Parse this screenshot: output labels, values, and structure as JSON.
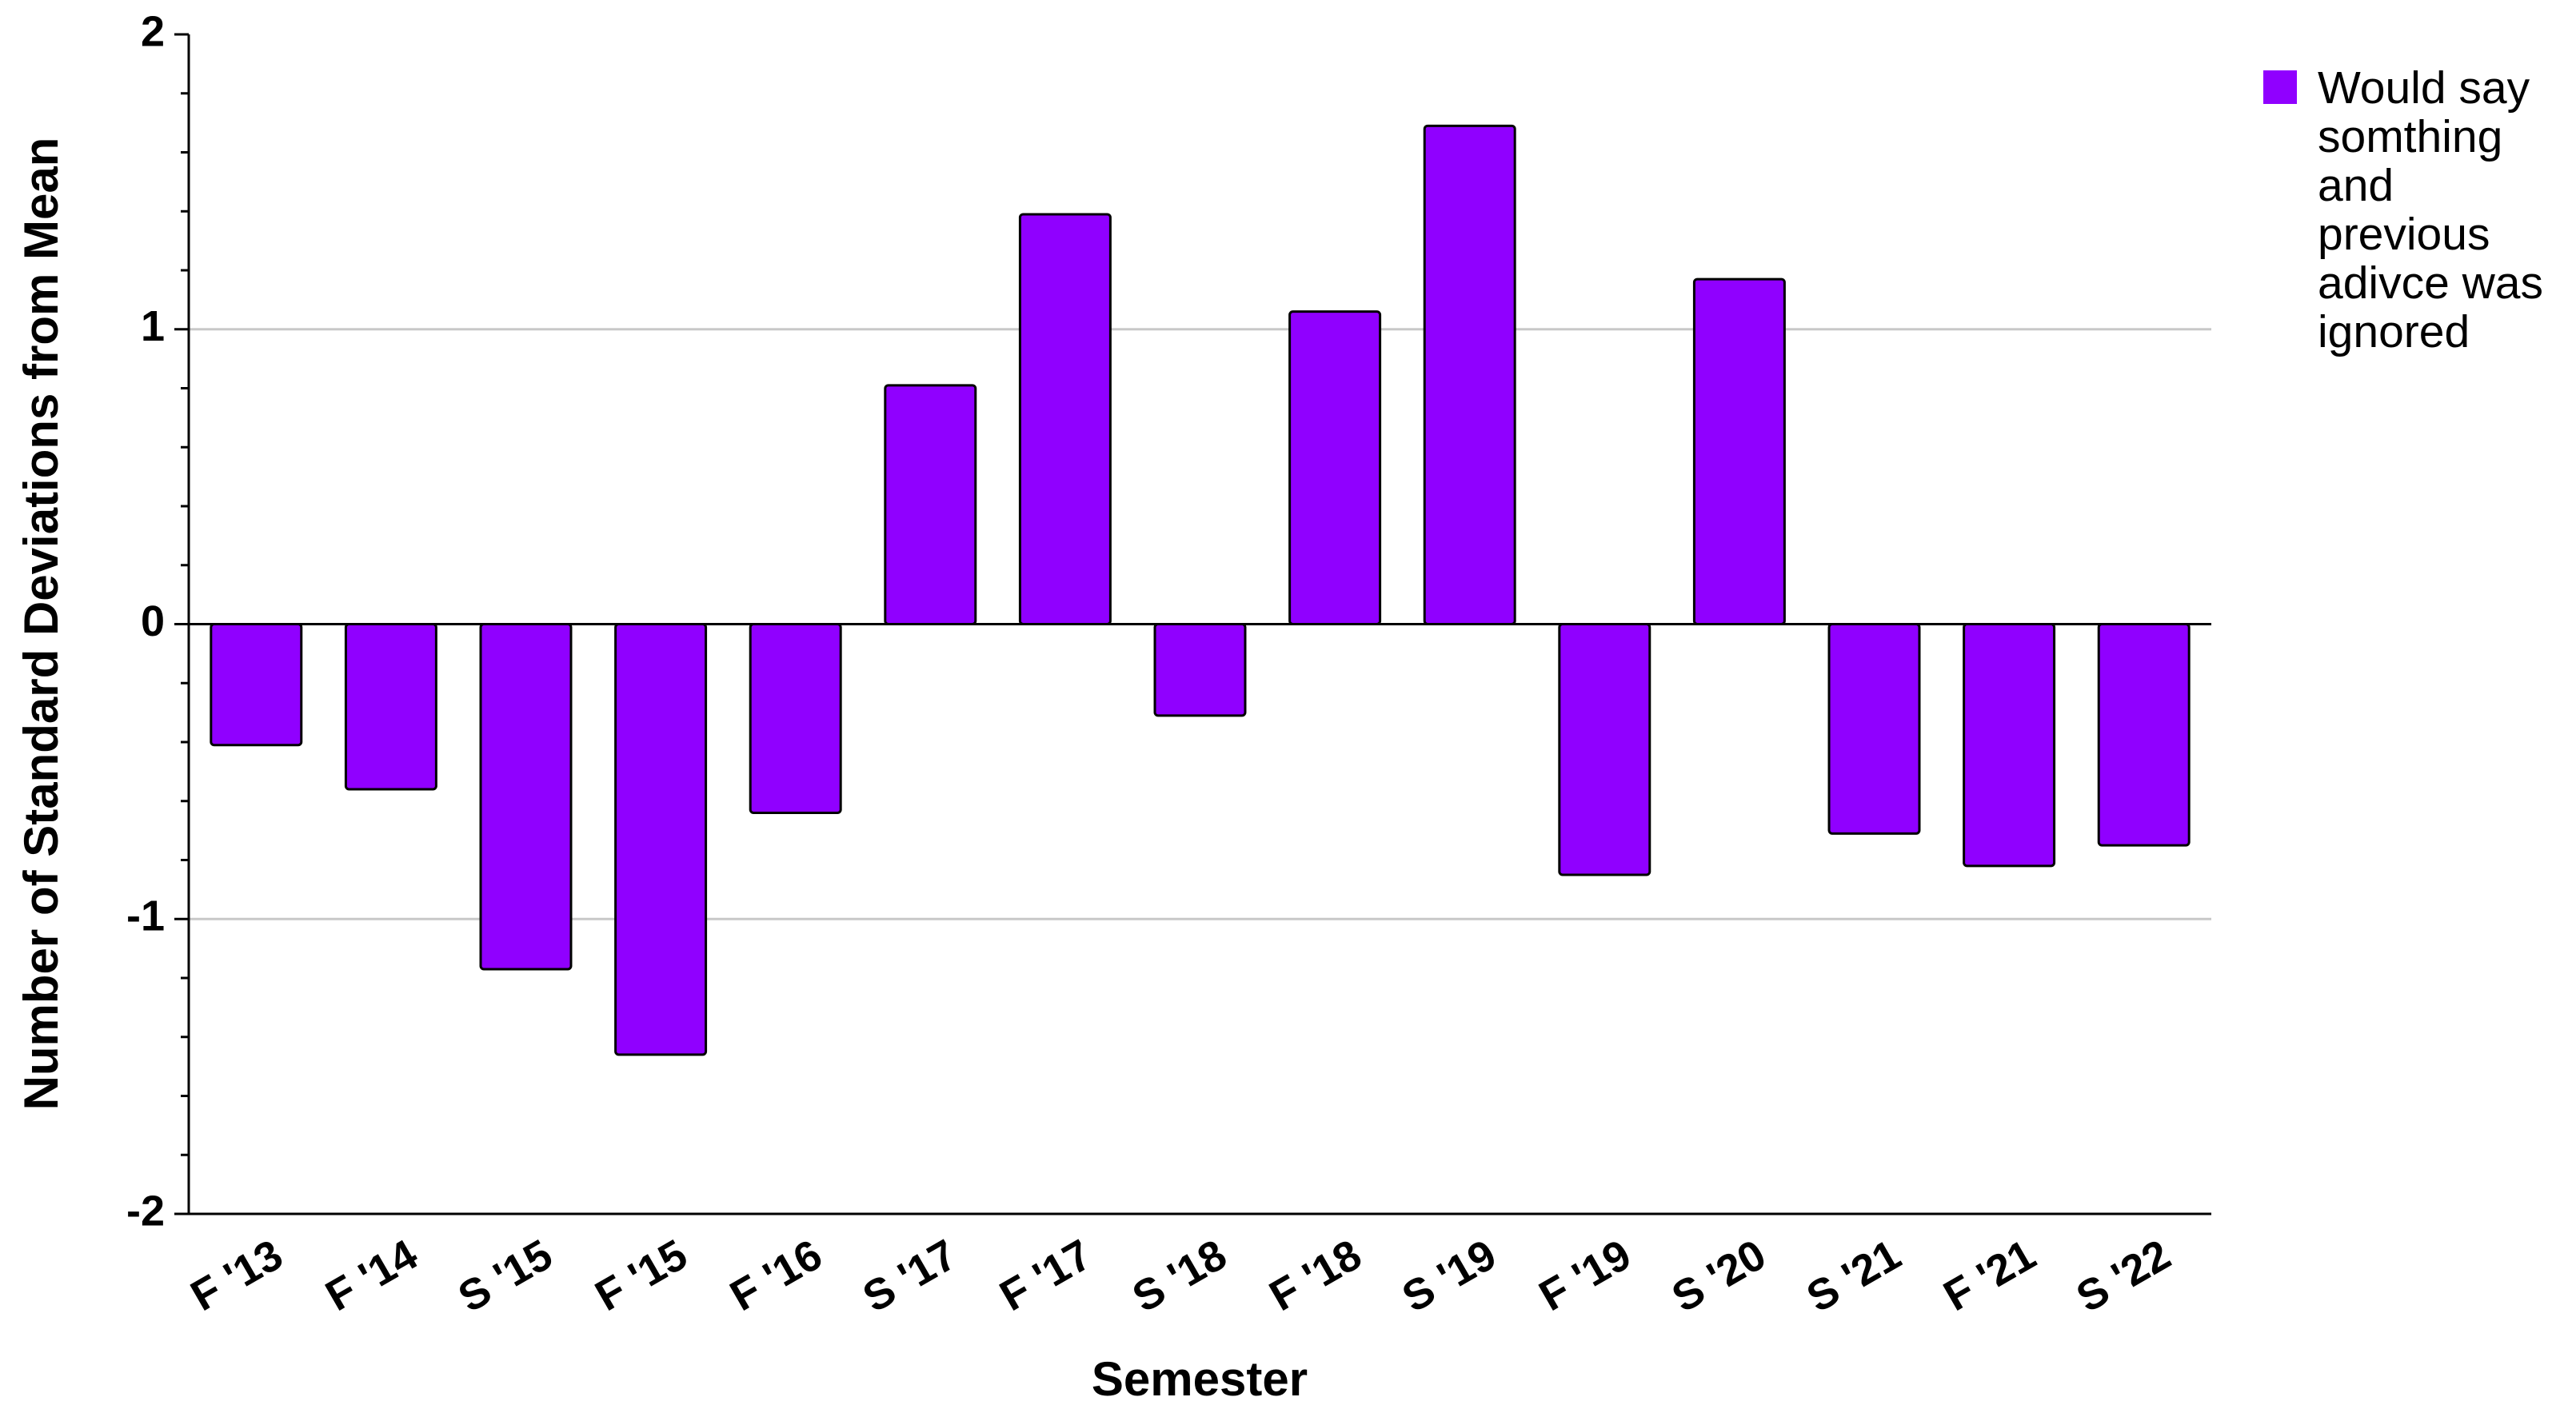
{
  "chart_data": {
    "type": "bar",
    "categories": [
      "F '13",
      "F '14",
      "S '15",
      "F '15",
      "F '16",
      "S '17",
      "F '17",
      "S '18",
      "F '18",
      "S '19",
      "F '19",
      "S '20",
      "S '21",
      "F '21",
      "S '22"
    ],
    "series": [
      {
        "name": "Would say somthing and previous adivce was ignored",
        "color": "#9000ff",
        "values": [
          -0.41,
          -0.56,
          -1.17,
          -1.46,
          -0.64,
          0.81,
          1.39,
          -0.31,
          1.06,
          1.69,
          -0.85,
          1.17,
          -0.71,
          -0.82,
          -0.75
        ]
      }
    ],
    "x_label": "Semester",
    "y_label": "Number of Standard Deviations from Mean",
    "ylim": [
      -2,
      2
    ],
    "yticks": [
      -2,
      -1,
      0,
      1,
      2
    ],
    "minor_yticks": [
      -1.8,
      -1.6,
      -1.4,
      -1.2,
      -0.8,
      -0.6,
      -0.4,
      -0.2,
      0.2,
      0.4,
      0.6,
      0.8,
      1.2,
      1.4,
      1.6,
      1.8
    ],
    "grid": true,
    "legend": "right"
  }
}
